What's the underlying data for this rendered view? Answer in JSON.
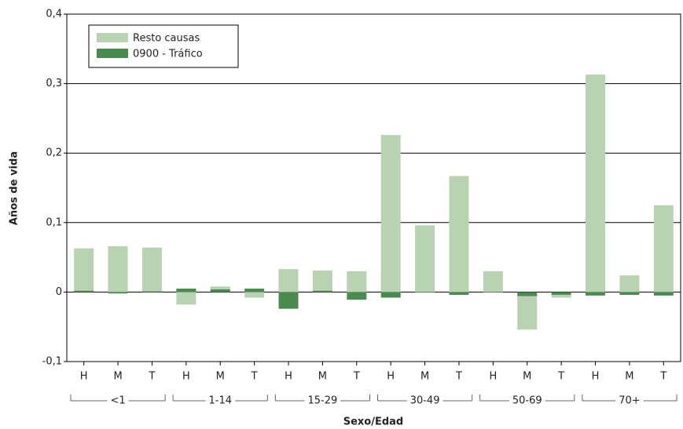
{
  "chart_data": {
    "type": "bar",
    "stacked": true,
    "x_label": "Sexo/Edad",
    "y_label": "Años de vida",
    "categories": [
      "H",
      "M",
      "T",
      "H",
      "M",
      "T",
      "H",
      "M",
      "T",
      "H",
      "M",
      "T",
      "H",
      "M",
      "T",
      "H",
      "M",
      "T"
    ],
    "groups": [
      "<1",
      "1-14",
      "15-29",
      "30-49",
      "50-69",
      "70+"
    ],
    "series": [
      {
        "name": "0900 - Tráfico",
        "color": "#4a8a4f",
        "values": [
          0.002,
          -0.002,
          0.001,
          0.005,
          0.004,
          0.005,
          -0.024,
          0.002,
          -0.011,
          -0.008,
          0,
          -0.004,
          0,
          -0.006,
          -0.004,
          -0.005,
          -0.004,
          -0.005
        ]
      },
      {
        "name": "Resto causas",
        "color": "#b9d3b2",
        "values": [
          0.061,
          0.066,
          0.063,
          -0.018,
          0.004,
          -0.008,
          0.033,
          0.029,
          0.03,
          0.226,
          0.096,
          0.167,
          0.03,
          -0.048,
          -0.004,
          0.313,
          0.024,
          0.125
        ]
      }
    ],
    "legend_order": [
      1,
      0
    ],
    "ylim": [
      -0.1,
      0.4
    ],
    "yticks": [
      {
        "value": -0.1,
        "label": "-0,1"
      },
      0,
      {
        "value": 0.1,
        "label": "0,1"
      },
      {
        "value": 0.2,
        "label": "0,2"
      },
      {
        "value": 0.3,
        "label": "0,3"
      },
      {
        "value": 0.4,
        "label": "0,4"
      }
    ],
    "grid": true,
    "legend": "upper left"
  }
}
